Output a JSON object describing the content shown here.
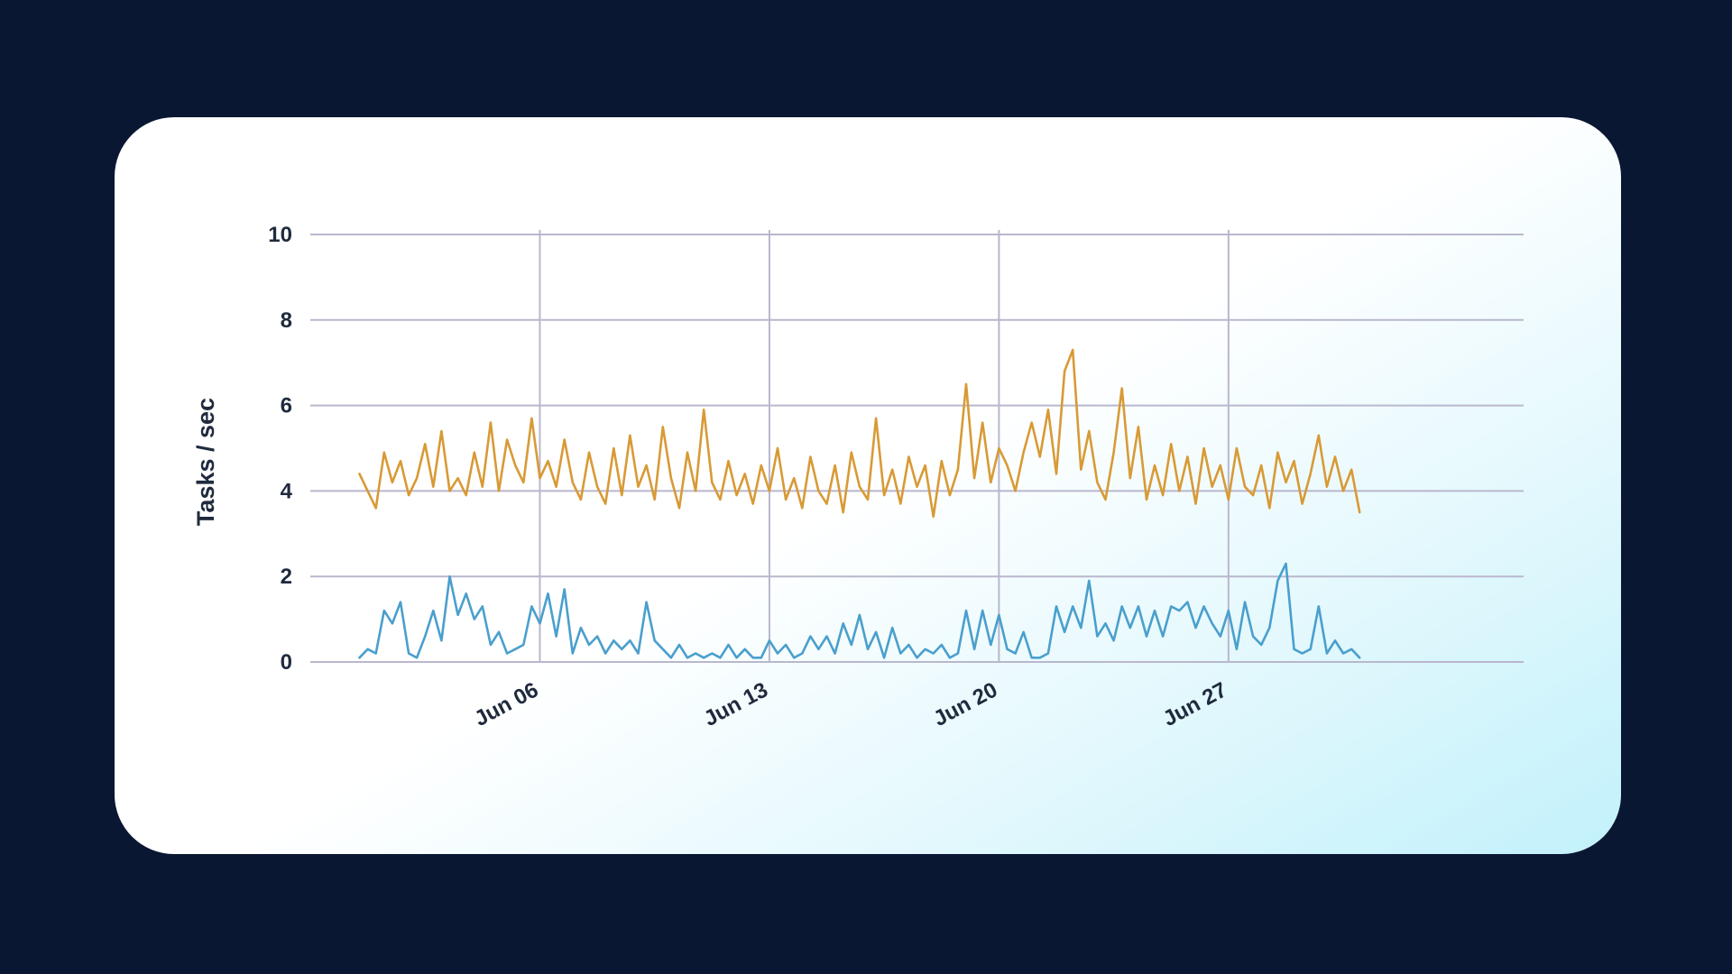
{
  "colors": {
    "background": "#0a1733",
    "card": "#ffffff",
    "card_accent": "#c2f1fb",
    "grid": "#b9b7cd",
    "text": "#1f2a3d"
  },
  "chart_data": {
    "type": "line",
    "title": "",
    "xlabel": "",
    "ylabel": "Tasks / sec",
    "ylim": [
      0,
      10
    ],
    "xlim": [
      "2023-05-30",
      "2023-07-06"
    ],
    "y_ticks": [
      "0",
      "2",
      "4",
      "6",
      "8",
      "10"
    ],
    "x_ticks": [
      {
        "label": "Jun 06",
        "value": "2023-06-06"
      },
      {
        "label": "Jun 13",
        "value": "2023-06-13"
      },
      {
        "label": "Jun 20",
        "value": "2023-06-20"
      },
      {
        "label": "Jun 27",
        "value": "2023-06-27"
      }
    ],
    "grid": true,
    "legend": "none",
    "series": [
      {
        "color": "#d89a35",
        "points": [
          [
            "2023-05-31 12:00",
            4.4
          ],
          [
            "2023-05-31 18:00",
            4.0
          ],
          [
            "2023-06-01 00:00",
            3.6
          ],
          [
            "2023-06-01 06:00",
            4.9
          ],
          [
            "2023-06-01 12:00",
            4.2
          ],
          [
            "2023-06-01 18:00",
            4.7
          ],
          [
            "2023-06-02 00:00",
            3.9
          ],
          [
            "2023-06-02 06:00",
            4.3
          ],
          [
            "2023-06-02 12:00",
            5.1
          ],
          [
            "2023-06-02 18:00",
            4.1
          ],
          [
            "2023-06-03 00:00",
            5.4
          ],
          [
            "2023-06-03 06:00",
            4.0
          ],
          [
            "2023-06-03 12:00",
            4.3
          ],
          [
            "2023-06-03 18:00",
            3.9
          ],
          [
            "2023-06-04 00:00",
            4.9
          ],
          [
            "2023-06-04 06:00",
            4.1
          ],
          [
            "2023-06-04 12:00",
            5.6
          ],
          [
            "2023-06-04 18:00",
            4.0
          ],
          [
            "2023-06-05 00:00",
            5.2
          ],
          [
            "2023-06-05 06:00",
            4.6
          ],
          [
            "2023-06-05 12:00",
            4.2
          ],
          [
            "2023-06-05 18:00",
            5.7
          ],
          [
            "2023-06-06 00:00",
            4.3
          ],
          [
            "2023-06-06 06:00",
            4.7
          ],
          [
            "2023-06-06 12:00",
            4.1
          ],
          [
            "2023-06-06 18:00",
            5.2
          ],
          [
            "2023-06-07 00:00",
            4.2
          ],
          [
            "2023-06-07 06:00",
            3.8
          ],
          [
            "2023-06-07 12:00",
            4.9
          ],
          [
            "2023-06-07 18:00",
            4.1
          ],
          [
            "2023-06-08 00:00",
            3.7
          ],
          [
            "2023-06-08 06:00",
            5.0
          ],
          [
            "2023-06-08 12:00",
            3.9
          ],
          [
            "2023-06-08 18:00",
            5.3
          ],
          [
            "2023-06-09 00:00",
            4.1
          ],
          [
            "2023-06-09 06:00",
            4.6
          ],
          [
            "2023-06-09 12:00",
            3.8
          ],
          [
            "2023-06-09 18:00",
            5.5
          ],
          [
            "2023-06-10 00:00",
            4.3
          ],
          [
            "2023-06-10 06:00",
            3.6
          ],
          [
            "2023-06-10 12:00",
            4.9
          ],
          [
            "2023-06-10 18:00",
            4.0
          ],
          [
            "2023-06-11 00:00",
            5.9
          ],
          [
            "2023-06-11 06:00",
            4.2
          ],
          [
            "2023-06-11 12:00",
            3.8
          ],
          [
            "2023-06-11 18:00",
            4.7
          ],
          [
            "2023-06-12 00:00",
            3.9
          ],
          [
            "2023-06-12 06:00",
            4.4
          ],
          [
            "2023-06-12 12:00",
            3.7
          ],
          [
            "2023-06-12 18:00",
            4.6
          ],
          [
            "2023-06-13 00:00",
            4.0
          ],
          [
            "2023-06-13 06:00",
            5.0
          ],
          [
            "2023-06-13 12:00",
            3.8
          ],
          [
            "2023-06-13 18:00",
            4.3
          ],
          [
            "2023-06-14 00:00",
            3.6
          ],
          [
            "2023-06-14 06:00",
            4.8
          ],
          [
            "2023-06-14 12:00",
            4.0
          ],
          [
            "2023-06-14 18:00",
            3.7
          ],
          [
            "2023-06-15 00:00",
            4.6
          ],
          [
            "2023-06-15 06:00",
            3.5
          ],
          [
            "2023-06-15 12:00",
            4.9
          ],
          [
            "2023-06-15 18:00",
            4.1
          ],
          [
            "2023-06-16 00:00",
            3.8
          ],
          [
            "2023-06-16 06:00",
            5.7
          ],
          [
            "2023-06-16 12:00",
            3.9
          ],
          [
            "2023-06-16 18:00",
            4.5
          ],
          [
            "2023-06-17 00:00",
            3.7
          ],
          [
            "2023-06-17 06:00",
            4.8
          ],
          [
            "2023-06-17 12:00",
            4.1
          ],
          [
            "2023-06-17 18:00",
            4.6
          ],
          [
            "2023-06-18 00:00",
            3.4
          ],
          [
            "2023-06-18 06:00",
            4.7
          ],
          [
            "2023-06-18 12:00",
            3.9
          ],
          [
            "2023-06-18 18:00",
            4.5
          ],
          [
            "2023-06-19 00:00",
            6.5
          ],
          [
            "2023-06-19 06:00",
            4.3
          ],
          [
            "2023-06-19 12:00",
            5.6
          ],
          [
            "2023-06-19 18:00",
            4.2
          ],
          [
            "2023-06-20 00:00",
            5.0
          ],
          [
            "2023-06-20 06:00",
            4.6
          ],
          [
            "2023-06-20 12:00",
            4.0
          ],
          [
            "2023-06-20 18:00",
            4.9
          ],
          [
            "2023-06-21 00:00",
            5.6
          ],
          [
            "2023-06-21 06:00",
            4.8
          ],
          [
            "2023-06-21 12:00",
            5.9
          ],
          [
            "2023-06-21 18:00",
            4.4
          ],
          [
            "2023-06-22 00:00",
            6.8
          ],
          [
            "2023-06-22 06:00",
            7.3
          ],
          [
            "2023-06-22 12:00",
            4.5
          ],
          [
            "2023-06-22 18:00",
            5.4
          ],
          [
            "2023-06-23 00:00",
            4.2
          ],
          [
            "2023-06-23 06:00",
            3.8
          ],
          [
            "2023-06-23 12:00",
            4.9
          ],
          [
            "2023-06-23 18:00",
            6.4
          ],
          [
            "2023-06-24 00:00",
            4.3
          ],
          [
            "2023-06-24 06:00",
            5.5
          ],
          [
            "2023-06-24 12:00",
            3.8
          ],
          [
            "2023-06-24 18:00",
            4.6
          ],
          [
            "2023-06-25 00:00",
            3.9
          ],
          [
            "2023-06-25 06:00",
            5.1
          ],
          [
            "2023-06-25 12:00",
            4.0
          ],
          [
            "2023-06-25 18:00",
            4.8
          ],
          [
            "2023-06-26 00:00",
            3.7
          ],
          [
            "2023-06-26 06:00",
            5.0
          ],
          [
            "2023-06-26 12:00",
            4.1
          ],
          [
            "2023-06-26 18:00",
            4.6
          ],
          [
            "2023-06-27 00:00",
            3.8
          ],
          [
            "2023-06-27 06:00",
            5.0
          ],
          [
            "2023-06-27 12:00",
            4.1
          ],
          [
            "2023-06-27 18:00",
            3.9
          ],
          [
            "2023-06-28 00:00",
            4.6
          ],
          [
            "2023-06-28 06:00",
            3.6
          ],
          [
            "2023-06-28 12:00",
            4.9
          ],
          [
            "2023-06-28 18:00",
            4.2
          ],
          [
            "2023-06-29 00:00",
            4.7
          ],
          [
            "2023-06-29 06:00",
            3.7
          ],
          [
            "2023-06-29 12:00",
            4.4
          ],
          [
            "2023-06-29 18:00",
            5.3
          ],
          [
            "2023-06-30 00:00",
            4.1
          ],
          [
            "2023-06-30 06:00",
            4.8
          ],
          [
            "2023-06-30 12:00",
            4.0
          ],
          [
            "2023-06-30 18:00",
            4.5
          ],
          [
            "2023-07-01 00:00",
            3.5
          ]
        ]
      },
      {
        "color": "#4a9fcd",
        "points": [
          [
            "2023-05-31 12:00",
            0.1
          ],
          [
            "2023-05-31 18:00",
            0.3
          ],
          [
            "2023-06-01 00:00",
            0.2
          ],
          [
            "2023-06-01 06:00",
            1.2
          ],
          [
            "2023-06-01 12:00",
            0.9
          ],
          [
            "2023-06-01 18:00",
            1.4
          ],
          [
            "2023-06-02 00:00",
            0.2
          ],
          [
            "2023-06-02 06:00",
            0.1
          ],
          [
            "2023-06-02 12:00",
            0.6
          ],
          [
            "2023-06-02 18:00",
            1.2
          ],
          [
            "2023-06-03 00:00",
            0.5
          ],
          [
            "2023-06-03 06:00",
            2.0
          ],
          [
            "2023-06-03 12:00",
            1.1
          ],
          [
            "2023-06-03 18:00",
            1.6
          ],
          [
            "2023-06-04 00:00",
            1.0
          ],
          [
            "2023-06-04 06:00",
            1.3
          ],
          [
            "2023-06-04 12:00",
            0.4
          ],
          [
            "2023-06-04 18:00",
            0.7
          ],
          [
            "2023-06-05 00:00",
            0.2
          ],
          [
            "2023-06-05 06:00",
            0.3
          ],
          [
            "2023-06-05 12:00",
            0.4
          ],
          [
            "2023-06-05 18:00",
            1.3
          ],
          [
            "2023-06-06 00:00",
            0.9
          ],
          [
            "2023-06-06 06:00",
            1.6
          ],
          [
            "2023-06-06 12:00",
            0.6
          ],
          [
            "2023-06-06 18:00",
            1.7
          ],
          [
            "2023-06-07 00:00",
            0.2
          ],
          [
            "2023-06-07 06:00",
            0.8
          ],
          [
            "2023-06-07 12:00",
            0.4
          ],
          [
            "2023-06-07 18:00",
            0.6
          ],
          [
            "2023-06-08 00:00",
            0.2
          ],
          [
            "2023-06-08 06:00",
            0.5
          ],
          [
            "2023-06-08 12:00",
            0.3
          ],
          [
            "2023-06-08 18:00",
            0.5
          ],
          [
            "2023-06-09 00:00",
            0.2
          ],
          [
            "2023-06-09 06:00",
            1.4
          ],
          [
            "2023-06-09 12:00",
            0.5
          ],
          [
            "2023-06-09 18:00",
            0.3
          ],
          [
            "2023-06-10 00:00",
            0.1
          ],
          [
            "2023-06-10 06:00",
            0.4
          ],
          [
            "2023-06-10 12:00",
            0.1
          ],
          [
            "2023-06-10 18:00",
            0.2
          ],
          [
            "2023-06-11 00:00",
            0.1
          ],
          [
            "2023-06-11 06:00",
            0.2
          ],
          [
            "2023-06-11 12:00",
            0.1
          ],
          [
            "2023-06-11 18:00",
            0.4
          ],
          [
            "2023-06-12 00:00",
            0.1
          ],
          [
            "2023-06-12 06:00",
            0.3
          ],
          [
            "2023-06-12 12:00",
            0.1
          ],
          [
            "2023-06-12 18:00",
            0.1
          ],
          [
            "2023-06-13 00:00",
            0.5
          ],
          [
            "2023-06-13 06:00",
            0.2
          ],
          [
            "2023-06-13 12:00",
            0.4
          ],
          [
            "2023-06-13 18:00",
            0.1
          ],
          [
            "2023-06-14 00:00",
            0.2
          ],
          [
            "2023-06-14 06:00",
            0.6
          ],
          [
            "2023-06-14 12:00",
            0.3
          ],
          [
            "2023-06-14 18:00",
            0.6
          ],
          [
            "2023-06-15 00:00",
            0.2
          ],
          [
            "2023-06-15 06:00",
            0.9
          ],
          [
            "2023-06-15 12:00",
            0.4
          ],
          [
            "2023-06-15 18:00",
            1.1
          ],
          [
            "2023-06-16 00:00",
            0.3
          ],
          [
            "2023-06-16 06:00",
            0.7
          ],
          [
            "2023-06-16 12:00",
            0.1
          ],
          [
            "2023-06-16 18:00",
            0.8
          ],
          [
            "2023-06-17 00:00",
            0.2
          ],
          [
            "2023-06-17 06:00",
            0.4
          ],
          [
            "2023-06-17 12:00",
            0.1
          ],
          [
            "2023-06-17 18:00",
            0.3
          ],
          [
            "2023-06-18 00:00",
            0.2
          ],
          [
            "2023-06-18 06:00",
            0.4
          ],
          [
            "2023-06-18 12:00",
            0.1
          ],
          [
            "2023-06-18 18:00",
            0.2
          ],
          [
            "2023-06-19 00:00",
            1.2
          ],
          [
            "2023-06-19 06:00",
            0.3
          ],
          [
            "2023-06-19 12:00",
            1.2
          ],
          [
            "2023-06-19 18:00",
            0.4
          ],
          [
            "2023-06-20 00:00",
            1.1
          ],
          [
            "2023-06-20 06:00",
            0.3
          ],
          [
            "2023-06-20 12:00",
            0.2
          ],
          [
            "2023-06-20 18:00",
            0.7
          ],
          [
            "2023-06-21 00:00",
            0.1
          ],
          [
            "2023-06-21 06:00",
            0.1
          ],
          [
            "2023-06-21 12:00",
            0.2
          ],
          [
            "2023-06-21 18:00",
            1.3
          ],
          [
            "2023-06-22 00:00",
            0.7
          ],
          [
            "2023-06-22 06:00",
            1.3
          ],
          [
            "2023-06-22 12:00",
            0.8
          ],
          [
            "2023-06-22 18:00",
            1.9
          ],
          [
            "2023-06-23 00:00",
            0.6
          ],
          [
            "2023-06-23 06:00",
            0.9
          ],
          [
            "2023-06-23 12:00",
            0.5
          ],
          [
            "2023-06-23 18:00",
            1.3
          ],
          [
            "2023-06-24 00:00",
            0.8
          ],
          [
            "2023-06-24 06:00",
            1.3
          ],
          [
            "2023-06-24 12:00",
            0.6
          ],
          [
            "2023-06-24 18:00",
            1.2
          ],
          [
            "2023-06-25 00:00",
            0.6
          ],
          [
            "2023-06-25 06:00",
            1.3
          ],
          [
            "2023-06-25 12:00",
            1.2
          ],
          [
            "2023-06-25 18:00",
            1.4
          ],
          [
            "2023-06-26 00:00",
            0.8
          ],
          [
            "2023-06-26 06:00",
            1.3
          ],
          [
            "2023-06-26 12:00",
            0.9
          ],
          [
            "2023-06-26 18:00",
            0.6
          ],
          [
            "2023-06-27 00:00",
            1.2
          ],
          [
            "2023-06-27 06:00",
            0.3
          ],
          [
            "2023-06-27 12:00",
            1.4
          ],
          [
            "2023-06-27 18:00",
            0.6
          ],
          [
            "2023-06-28 00:00",
            0.4
          ],
          [
            "2023-06-28 06:00",
            0.8
          ],
          [
            "2023-06-28 12:00",
            1.9
          ],
          [
            "2023-06-28 18:00",
            2.3
          ],
          [
            "2023-06-29 00:00",
            0.3
          ],
          [
            "2023-06-29 06:00",
            0.2
          ],
          [
            "2023-06-29 12:00",
            0.3
          ],
          [
            "2023-06-29 18:00",
            1.3
          ],
          [
            "2023-06-30 00:00",
            0.2
          ],
          [
            "2023-06-30 06:00",
            0.5
          ],
          [
            "2023-06-30 12:00",
            0.2
          ],
          [
            "2023-06-30 18:00",
            0.3
          ],
          [
            "2023-07-01 00:00",
            0.1
          ]
        ]
      }
    ]
  }
}
